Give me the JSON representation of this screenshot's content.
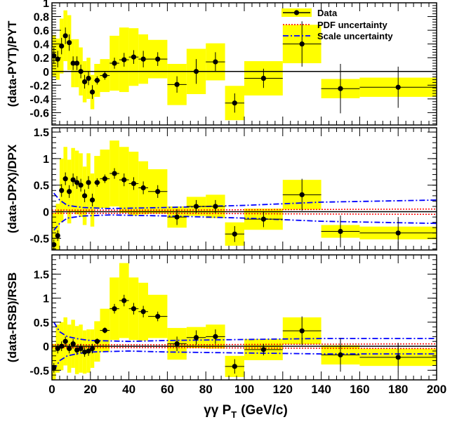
{
  "chart_data": {
    "type": "scatter",
    "x_axis": {
      "label_main": "γγ P",
      "label_sub": "T",
      "label_unit": "(GeV/c)",
      "range": [
        0,
        200
      ],
      "ticks": [
        "0",
        "20",
        "40",
        "60",
        "80",
        "100",
        "120",
        "140",
        "160",
        "180",
        "200"
      ]
    },
    "legend": {
      "placement": "top-right",
      "entries": [
        {
          "label": "Data",
          "style": "marker",
          "color": "#000000"
        },
        {
          "label": "PDF uncertainty",
          "style": "dotted",
          "color": "#ff0000"
        },
        {
          "label": "Scale uncertainty",
          "style": "dash-dot",
          "color": "#0000ff"
        }
      ]
    },
    "colors": {
      "band": "#ffff00",
      "data": "#000000",
      "pdf": "#ff0000",
      "scale": "#0000ff"
    },
    "panels": [
      {
        "ylabel": "(data-PYT)/PYT",
        "ylim": [
          -0.78,
          1.0
        ],
        "yticks": [
          {
            "v": 1,
            "t": "1"
          },
          {
            "v": 0.8,
            "t": "0.8"
          },
          {
            "v": 0.6,
            "t": "0.6"
          },
          {
            "v": 0.4,
            "t": "0.4"
          },
          {
            "v": 0.2,
            "t": "0.2"
          },
          {
            "v": 0,
            "t": "0"
          },
          {
            "v": -0.2,
            "t": "-0.2"
          },
          {
            "v": -0.4,
            "t": "-0.4"
          },
          {
            "v": -0.6,
            "t": "-0.6"
          }
        ],
        "points": [
          {
            "x": 1,
            "y": 0.23,
            "xw": 1,
            "err": 0.12,
            "band": 0.3
          },
          {
            "x": 3,
            "y": 0.18,
            "xw": 1,
            "err": 0.12,
            "band": 0.3
          },
          {
            "x": 5,
            "y": 0.37,
            "xw": 1,
            "err": 0.12,
            "band": 0.4
          },
          {
            "x": 7,
            "y": 0.52,
            "xw": 1,
            "err": 0.12,
            "band": 0.37
          },
          {
            "x": 9,
            "y": 0.42,
            "xw": 1,
            "err": 0.12,
            "band": 0.4
          },
          {
            "x": 11,
            "y": 0.12,
            "xw": 1,
            "err": 0.1,
            "band": 0.35
          },
          {
            "x": 13,
            "y": 0.12,
            "xw": 1,
            "err": 0.1,
            "band": 0.35
          },
          {
            "x": 15,
            "y": 0.0,
            "xw": 1,
            "err": 0.1,
            "band": 0.35
          },
          {
            "x": 17,
            "y": -0.15,
            "xw": 1,
            "err": 0.1,
            "band": 0.3
          },
          {
            "x": 19,
            "y": -0.1,
            "xw": 1,
            "err": 0.1,
            "band": 0.3
          },
          {
            "x": 21,
            "y": -0.3,
            "xw": 1,
            "err": 0.1,
            "band": 0.25
          },
          {
            "x": 23.5,
            "y": -0.13,
            "xw": 1.5,
            "err": 0.06,
            "band": 0.24
          },
          {
            "x": 27.5,
            "y": -0.06,
            "xw": 2.5,
            "err": 0.06,
            "band": 0.24
          },
          {
            "x": 32.5,
            "y": 0.12,
            "xw": 2.5,
            "err": 0.08,
            "band": 0.4
          },
          {
            "x": 37.5,
            "y": 0.17,
            "xw": 2.5,
            "err": 0.1,
            "band": 0.47
          },
          {
            "x": 42.5,
            "y": 0.21,
            "xw": 2.5,
            "err": 0.1,
            "band": 0.42
          },
          {
            "x": 47.5,
            "y": 0.18,
            "xw": 2.5,
            "err": 0.12,
            "band": 0.36
          },
          {
            "x": 55,
            "y": 0.18,
            "xw": 5,
            "err": 0.1,
            "band": 0.28
          },
          {
            "x": 65,
            "y": -0.19,
            "xw": 5,
            "err": 0.12,
            "band": 0.3
          },
          {
            "x": 75,
            "y": 0.0,
            "xw": 5,
            "err": 0.18,
            "band": 0.33
          },
          {
            "x": 85,
            "y": 0.14,
            "xw": 5,
            "err": 0.14,
            "band": 0.27
          },
          {
            "x": 95,
            "y": -0.46,
            "xw": 5,
            "err": 0.14,
            "band": 0.25
          },
          {
            "x": 110,
            "y": -0.1,
            "xw": 10,
            "err": 0.14,
            "band": 0.25
          },
          {
            "x": 130,
            "y": 0.4,
            "xw": 10,
            "err": 0.33,
            "band": 0.28
          },
          {
            "x": 150,
            "y": -0.25,
            "xw": 10,
            "err": 0.36,
            "band": 0.14
          },
          {
            "x": 180,
            "y": -0.23,
            "xw": 20,
            "err": 0.3,
            "band": 0.14
          }
        ],
        "pdf_band": [],
        "scale_band": []
      },
      {
        "ylabel": "(data-DPX)/DPX",
        "ylim": [
          -0.72,
          1.58
        ],
        "yticks": [
          {
            "v": 1.5,
            "t": "1.5"
          },
          {
            "v": 1,
            "t": "1"
          },
          {
            "v": 0.5,
            "t": "0.5"
          },
          {
            "v": 0,
            "t": "0"
          },
          {
            "v": -0.5,
            "t": "-0.5"
          }
        ],
        "points": [
          {
            "x": 1,
            "y": -0.62,
            "xw": 1,
            "err": 0.1,
            "band": 0.6
          },
          {
            "x": 3,
            "y": -0.45,
            "xw": 1,
            "err": 0.1,
            "band": 0.6
          },
          {
            "x": 5,
            "y": 0.4,
            "xw": 1,
            "err": 0.12,
            "band": 0.6
          },
          {
            "x": 7,
            "y": 0.62,
            "xw": 1,
            "err": 0.12,
            "band": 0.6
          },
          {
            "x": 9,
            "y": 0.38,
            "xw": 1,
            "err": 0.12,
            "band": 0.6
          },
          {
            "x": 11,
            "y": 0.6,
            "xw": 1,
            "err": 0.12,
            "band": 0.6
          },
          {
            "x": 13,
            "y": 0.55,
            "xw": 1,
            "err": 0.12,
            "band": 0.6
          },
          {
            "x": 15,
            "y": 0.5,
            "xw": 1,
            "err": 0.12,
            "band": 0.6
          },
          {
            "x": 17,
            "y": 0.3,
            "xw": 1,
            "err": 0.12,
            "band": 0.55
          },
          {
            "x": 19,
            "y": 0.55,
            "xw": 1,
            "err": 0.12,
            "band": 0.55
          },
          {
            "x": 21,
            "y": 0.22,
            "xw": 1,
            "err": 0.12,
            "band": 0.5
          },
          {
            "x": 23.5,
            "y": 0.55,
            "xw": 1.5,
            "err": 0.08,
            "band": 0.5
          },
          {
            "x": 27.5,
            "y": 0.62,
            "xw": 2.5,
            "err": 0.08,
            "band": 0.55
          },
          {
            "x": 32.5,
            "y": 0.72,
            "xw": 2.5,
            "err": 0.1,
            "band": 0.62
          },
          {
            "x": 37.5,
            "y": 0.6,
            "xw": 2.5,
            "err": 0.12,
            "band": 0.62
          },
          {
            "x": 42.5,
            "y": 0.53,
            "xw": 2.5,
            "err": 0.12,
            "band": 0.6
          },
          {
            "x": 47.5,
            "y": 0.45,
            "xw": 2.5,
            "err": 0.12,
            "band": 0.5
          },
          {
            "x": 55,
            "y": 0.38,
            "xw": 5,
            "err": 0.12,
            "band": 0.42
          },
          {
            "x": 65,
            "y": -0.1,
            "xw": 5,
            "err": 0.15,
            "band": 0.2
          },
          {
            "x": 75,
            "y": 0.1,
            "xw": 5,
            "err": 0.12,
            "band": 0.18
          },
          {
            "x": 85,
            "y": 0.1,
            "xw": 5,
            "err": 0.12,
            "band": 0.22
          },
          {
            "x": 95,
            "y": -0.42,
            "xw": 5,
            "err": 0.15,
            "band": 0.22
          },
          {
            "x": 110,
            "y": -0.14,
            "xw": 10,
            "err": 0.15,
            "band": 0.2
          },
          {
            "x": 130,
            "y": 0.32,
            "xw": 10,
            "err": 0.3,
            "band": 0.28
          },
          {
            "x": 150,
            "y": -0.37,
            "xw": 10,
            "err": 0.3,
            "band": 0.12
          },
          {
            "x": 180,
            "y": -0.4,
            "xw": 20,
            "err": 0.3,
            "band": 0.12
          }
        ],
        "pdf_band": [
          [
            0,
            0.03
          ],
          [
            60,
            0.03
          ],
          [
            120,
            0.04
          ],
          [
            200,
            0.05
          ]
        ],
        "scale_band": [
          [
            1,
            0.35
          ],
          [
            4,
            0.22
          ],
          [
            8,
            0.12
          ],
          [
            16,
            0.08
          ],
          [
            30,
            0.06
          ],
          [
            60,
            0.08
          ],
          [
            100,
            0.12
          ],
          [
            140,
            0.18
          ],
          [
            200,
            0.22
          ]
        ]
      },
      {
        "ylabel": "(data-RSB)/RSB",
        "ylim": [
          -0.7,
          1.9
        ],
        "yticks": [
          {
            "v": 1.5,
            "t": "1.5"
          },
          {
            "v": 1,
            "t": "1"
          },
          {
            "v": 0.5,
            "t": "0.5"
          },
          {
            "v": 0,
            "t": "0"
          },
          {
            "v": -0.5,
            "t": "-0.5"
          }
        ],
        "points": [
          {
            "x": 1,
            "y": -0.45,
            "xw": 1,
            "err": 0.1,
            "band": 0.5
          },
          {
            "x": 3,
            "y": -0.05,
            "xw": 1,
            "err": 0.1,
            "band": 0.5
          },
          {
            "x": 5,
            "y": 0.0,
            "xw": 1,
            "err": 0.1,
            "band": 0.5
          },
          {
            "x": 7,
            "y": 0.1,
            "xw": 1,
            "err": 0.1,
            "band": 0.5
          },
          {
            "x": 9,
            "y": -0.05,
            "xw": 1,
            "err": 0.1,
            "band": 0.5
          },
          {
            "x": 11,
            "y": 0.05,
            "xw": 1,
            "err": 0.1,
            "band": 0.5
          },
          {
            "x": 13,
            "y": -0.08,
            "xw": 1,
            "err": 0.1,
            "band": 0.5
          },
          {
            "x": 15,
            "y": -0.05,
            "xw": 1,
            "err": 0.1,
            "band": 0.5
          },
          {
            "x": 17,
            "y": -0.12,
            "xw": 1,
            "err": 0.1,
            "band": 0.45
          },
          {
            "x": 19,
            "y": -0.1,
            "xw": 1,
            "err": 0.1,
            "band": 0.45
          },
          {
            "x": 21,
            "y": -0.05,
            "xw": 1,
            "err": 0.1,
            "band": 0.4
          },
          {
            "x": 23.5,
            "y": 0.1,
            "xw": 1.5,
            "err": 0.06,
            "band": 0.42
          },
          {
            "x": 27.5,
            "y": 0.33,
            "xw": 2.5,
            "err": 0.06,
            "band": 0.45
          },
          {
            "x": 32.5,
            "y": 0.78,
            "xw": 2.5,
            "err": 0.1,
            "band": 0.65
          },
          {
            "x": 37.5,
            "y": 0.95,
            "xw": 2.5,
            "err": 0.12,
            "band": 0.78
          },
          {
            "x": 42.5,
            "y": 0.78,
            "xw": 2.5,
            "err": 0.12,
            "band": 0.65
          },
          {
            "x": 47.5,
            "y": 0.72,
            "xw": 2.5,
            "err": 0.12,
            "band": 0.6
          },
          {
            "x": 55,
            "y": 0.62,
            "xw": 5,
            "err": 0.1,
            "band": 0.45
          },
          {
            "x": 65,
            "y": 0.05,
            "xw": 5,
            "err": 0.15,
            "band": 0.33
          },
          {
            "x": 75,
            "y": 0.18,
            "xw": 5,
            "err": 0.15,
            "band": 0.22
          },
          {
            "x": 85,
            "y": 0.2,
            "xw": 5,
            "err": 0.15,
            "band": 0.25
          },
          {
            "x": 95,
            "y": -0.42,
            "xw": 5,
            "err": 0.15,
            "band": 0.22
          },
          {
            "x": 110,
            "y": -0.07,
            "xw": 10,
            "err": 0.12,
            "band": 0.22
          },
          {
            "x": 130,
            "y": 0.32,
            "xw": 10,
            "err": 0.3,
            "band": 0.28
          },
          {
            "x": 150,
            "y": -0.18,
            "xw": 10,
            "err": 0.35,
            "band": 0.2
          },
          {
            "x": 180,
            "y": -0.23,
            "xw": 20,
            "err": 0.3,
            "band": 0.18
          }
        ],
        "pdf_band": [
          [
            0,
            0.03
          ],
          [
            60,
            0.03
          ],
          [
            120,
            0.04
          ],
          [
            200,
            0.05
          ]
        ],
        "scale_band": [
          [
            1,
            0.5
          ],
          [
            4,
            0.3
          ],
          [
            8,
            0.2
          ],
          [
            14,
            0.15
          ],
          [
            20,
            0.12
          ],
          [
            40,
            0.1
          ],
          [
            60,
            0.12
          ],
          [
            100,
            0.14
          ],
          [
            140,
            0.16
          ],
          [
            200,
            0.16
          ]
        ]
      }
    ]
  }
}
